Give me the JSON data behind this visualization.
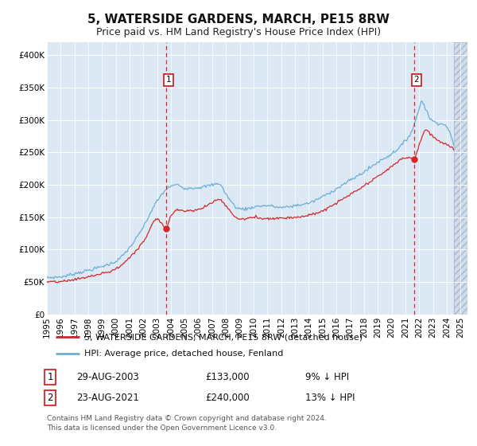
{
  "title": "5, WATERSIDE GARDENS, MARCH, PE15 8RW",
  "subtitle": "Price paid vs. HM Land Registry's House Price Index (HPI)",
  "legend_line1": "5, WATERSIDE GARDENS, MARCH, PE15 8RW (detached house)",
  "legend_line2": "HPI: Average price, detached house, Fenland",
  "footnote1": "Contains HM Land Registry data © Crown copyright and database right 2024.",
  "footnote2": "This data is licensed under the Open Government Licence v3.0.",
  "sale1_label": "1",
  "sale1_date": "29-AUG-2003",
  "sale1_price": "£133,000",
  "sale1_hpi": "9% ↓ HPI",
  "sale2_label": "2",
  "sale2_date": "23-AUG-2021",
  "sale2_price": "£240,000",
  "sale2_hpi": "13% ↓ HPI",
  "sale1_year": 2003.66,
  "sale1_value": 133000,
  "sale2_year": 2021.64,
  "sale2_value": 240000,
  "xmin": 1995.0,
  "xmax": 2025.5,
  "ymin": 0,
  "ymax": 420000,
  "yticks": [
    0,
    50000,
    100000,
    150000,
    200000,
    250000,
    300000,
    350000,
    400000
  ],
  "ytick_labels": [
    "£0",
    "£50K",
    "£100K",
    "£150K",
    "£200K",
    "£250K",
    "£300K",
    "£350K",
    "£400K"
  ],
  "xticks": [
    1995,
    1996,
    1997,
    1998,
    1999,
    2000,
    2001,
    2002,
    2003,
    2004,
    2005,
    2006,
    2007,
    2008,
    2009,
    2010,
    2011,
    2012,
    2013,
    2014,
    2015,
    2016,
    2017,
    2018,
    2019,
    2020,
    2021,
    2022,
    2023,
    2024,
    2025
  ],
  "hpi_color": "#6baed6",
  "price_color": "#d62728",
  "bg_color": "#dce9f5",
  "vline_color": "#d62728",
  "grid_color": "#ffffff",
  "title_fontsize": 11,
  "subtitle_fontsize": 9,
  "axis_label_fontsize": 7.5,
  "legend_fontsize": 8,
  "table_fontsize": 8.5,
  "footnote_fontsize": 6.5
}
